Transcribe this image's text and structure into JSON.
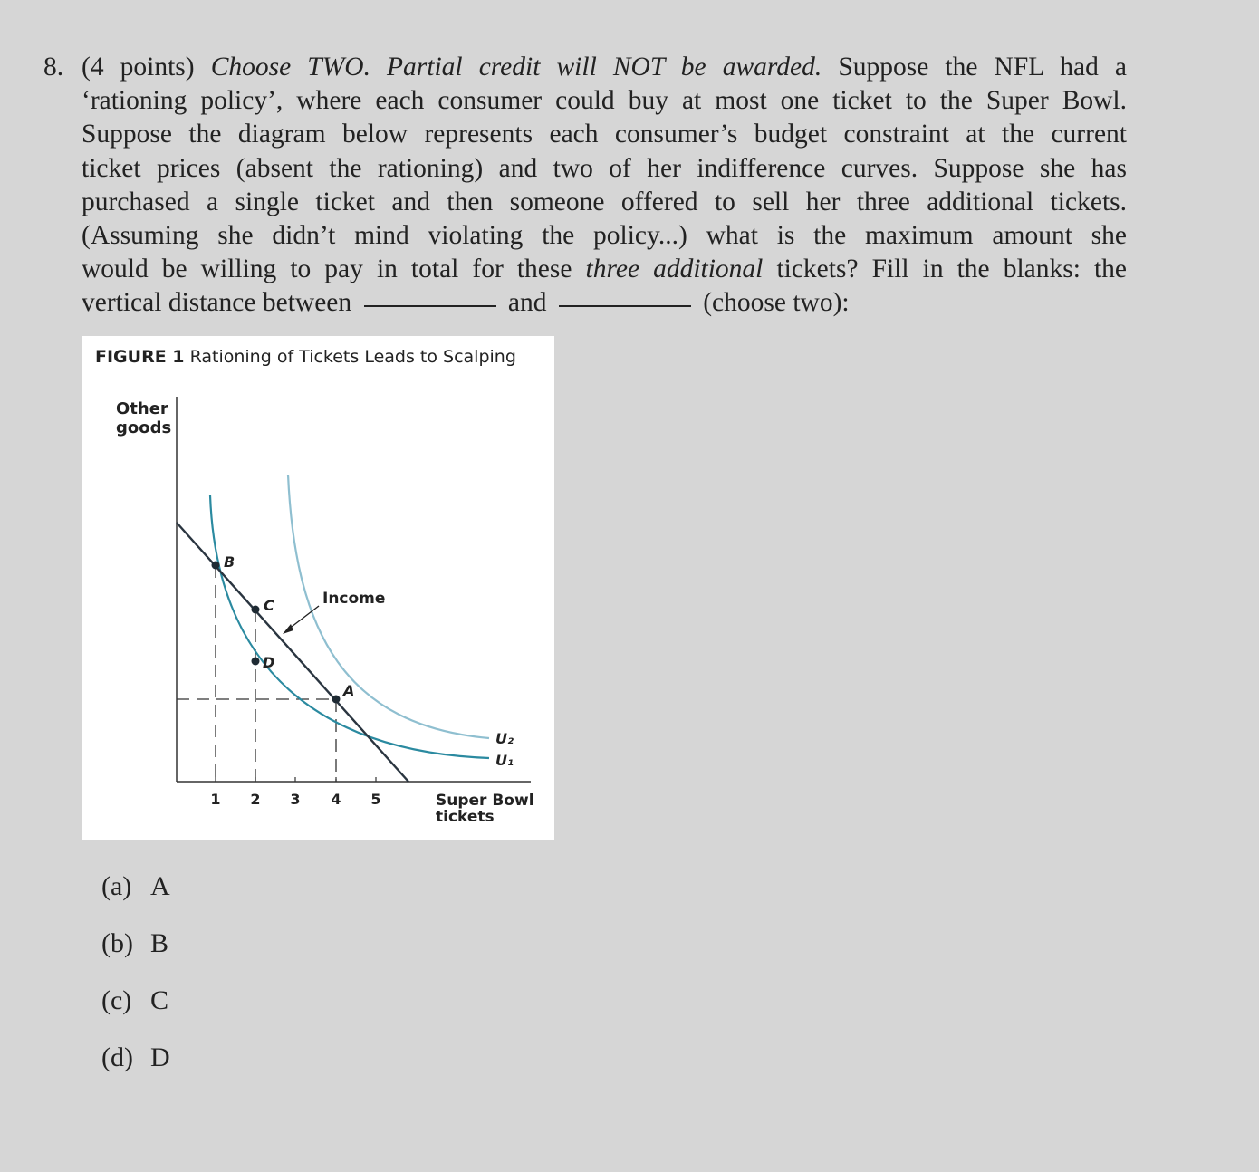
{
  "question": {
    "number": "8.",
    "points": "(4 points)",
    "instruction": "Choose TWO. Partial credit will NOT be awarded.",
    "text_1": "Suppose the NFL had a",
    "line_2": "‘rationing policy’, where each consumer could buy at most one ticket to the Super Bowl.",
    "line_3": "Suppose the diagram below represents each consumer’s budget constraint at the current",
    "line_4": "ticket prices (absent the rationing) and two of her indifference curves. Suppose she has",
    "line_5": "purchased a single ticket and then someone offered to sell her three additional tickets.",
    "line_6": "(Assuming she didn’t mind violating the policy...) what is the maximum amount she",
    "line_7a": "would be willing to pay in total for these",
    "line_7_italic": "three additional",
    "line_7b": "tickets? Fill in the blanks: the",
    "line_8a": "vertical distance between",
    "line_8b": "and",
    "line_8c": "(choose two):"
  },
  "figure": {
    "title_bold": "FIGURE 1",
    "title_rest": "Rationing of Tickets Leads to Scalping",
    "y_label_1": "Other",
    "y_label_2": "goods",
    "x_label_1": "Super Bowl",
    "x_label_2": "tickets",
    "x_ticks": [
      "1",
      "2",
      "3",
      "4",
      "5"
    ],
    "income_label": "Income",
    "point_labels": {
      "A": "A",
      "B": "B",
      "C": "C",
      "D": "D"
    },
    "curve_labels": {
      "u2": "U₂",
      "u1": "U₁"
    },
    "colors": {
      "budget": "#2a3540",
      "u1": "#2b8aa0",
      "u2": "#8fbfd0",
      "axis": "#333333"
    }
  },
  "options": [
    {
      "label": "(a)",
      "text": "A"
    },
    {
      "label": "(b)",
      "text": "B"
    },
    {
      "label": "(c)",
      "text": "C"
    },
    {
      "label": "(d)",
      "text": "D"
    }
  ]
}
